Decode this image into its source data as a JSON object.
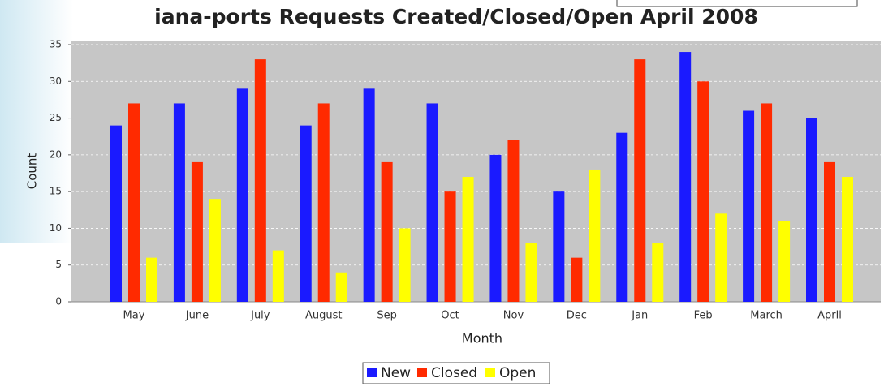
{
  "chart_data": {
    "type": "bar",
    "title": "iana-ports Requests Created/Closed/Open April 2008",
    "x_label": "Month",
    "y_label": "Count",
    "categories": [
      "May",
      "June",
      "July",
      "August",
      "Sep",
      "Oct",
      "Nov",
      "Dec",
      "Jan",
      "Feb",
      "March",
      "April"
    ],
    "series": [
      {
        "name": "New",
        "color": "#1a1aff",
        "values": [
          24,
          27,
          29,
          24,
          29,
          27,
          20,
          15,
          23,
          34,
          26,
          25
        ]
      },
      {
        "name": "Closed",
        "color": "#ff2a00",
        "values": [
          27,
          19,
          33,
          27,
          19,
          15,
          22,
          6,
          33,
          30,
          27,
          19
        ]
      },
      {
        "name": "Open",
        "color": "#ffff00",
        "values": [
          6,
          14,
          7,
          4,
          10,
          17,
          8,
          18,
          8,
          12,
          11,
          17
        ]
      }
    ],
    "ylim": [
      0,
      35
    ],
    "yticks": [
      0,
      5,
      10,
      15,
      20,
      25,
      30,
      35
    ],
    "grid": true,
    "legend": "bottom"
  }
}
